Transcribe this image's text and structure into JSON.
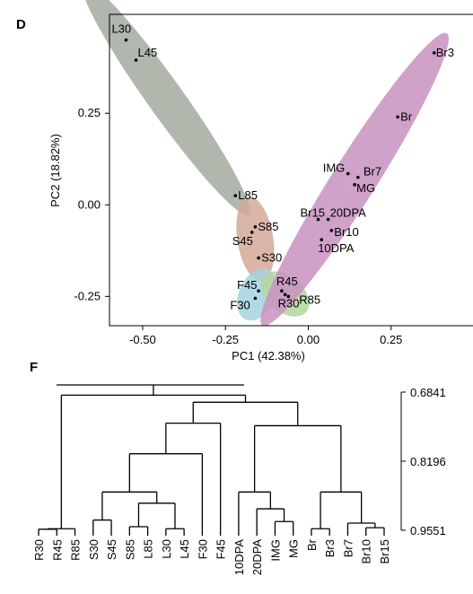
{
  "chart_data": [
    {
      "type": "scatter",
      "panel_label": "D",
      "xlabel": "PC1 (42.38%)",
      "ylabel": "PC2 (18.82%)",
      "xlim": [
        -0.6,
        0.5
      ],
      "ylim": [
        -0.33,
        0.52
      ],
      "xticks": [
        -0.5,
        -0.25,
        0.0,
        0.25
      ],
      "xtick_labels": [
        "-0.50",
        "-0.25",
        "0.00",
        "0.25"
      ],
      "yticks": [
        -0.25,
        0.0,
        0.25
      ],
      "ytick_labels": [
        "-0.25",
        "0.00",
        "0.25"
      ],
      "grid": false,
      "points": [
        {
          "label": "L30",
          "x": -0.55,
          "y": 0.45
        },
        {
          "label": "L45",
          "x": -0.52,
          "y": 0.395
        },
        {
          "label": "L85",
          "x": -0.22,
          "y": 0.025
        },
        {
          "label": "S85",
          "x": -0.16,
          "y": -0.06
        },
        {
          "label": "S45",
          "x": -0.17,
          "y": -0.075
        },
        {
          "label": "S30",
          "x": -0.15,
          "y": -0.145
        },
        {
          "label": "F45",
          "x": -0.15,
          "y": -0.235
        },
        {
          "label": "F30",
          "x": -0.16,
          "y": -0.255
        },
        {
          "label": "R45",
          "x": -0.08,
          "y": -0.235
        },
        {
          "label": "R30",
          "x": -0.07,
          "y": -0.245
        },
        {
          "label": "R85",
          "x": -0.06,
          "y": -0.25
        },
        {
          "label": "Br3",
          "x": 0.38,
          "y": 0.415
        },
        {
          "label": "Br",
          "x": 0.27,
          "y": 0.24
        },
        {
          "label": "IMG",
          "x": 0.12,
          "y": 0.085
        },
        {
          "label": "Br7",
          "x": 0.15,
          "y": 0.075
        },
        {
          "label": "MG",
          "x": 0.14,
          "y": 0.055
        },
        {
          "label": "Br15",
          "x": 0.03,
          "y": -0.04
        },
        {
          "label": "20DPA",
          "x": 0.06,
          "y": -0.04
        },
        {
          "label": "Br10",
          "x": 0.07,
          "y": -0.07
        },
        {
          "label": "10DPA",
          "x": 0.04,
          "y": -0.095
        }
      ],
      "groups": [
        {
          "members": [
            "L30",
            "L45",
            "L85"
          ],
          "color": "#a3aa9e"
        },
        {
          "members": [
            "S85",
            "S45",
            "S30"
          ],
          "color": "#d4a99a"
        },
        {
          "members": [
            "F45",
            "F30"
          ],
          "color": "#a5d3e0"
        },
        {
          "members": [
            "R45",
            "R30",
            "R85"
          ],
          "color": "#b4d69d"
        },
        {
          "members": [
            "Br3",
            "Br",
            "IMG",
            "Br7",
            "MG",
            "Br15",
            "20DPA",
            "Br10",
            "10DPA"
          ],
          "color": "#c892c1"
        }
      ]
    },
    {
      "type": "dendrogram",
      "panel_label": "F",
      "leaves": [
        "R30",
        "R45",
        "R85",
        "S30",
        "S45",
        "S85",
        "L85",
        "L30",
        "L45",
        "F30",
        "F45",
        "10DPA",
        "20DPA",
        "IMG",
        "MG",
        "Br",
        "Br3",
        "Br7",
        "Br10",
        "Br15"
      ],
      "axis_ticks": [
        0.6841,
        0.8196,
        0.9551
      ],
      "axis_tick_labels": [
        "0.6841",
        "0.8196",
        "0.9551"
      ],
      "scale_direction": "reversed"
    }
  ]
}
